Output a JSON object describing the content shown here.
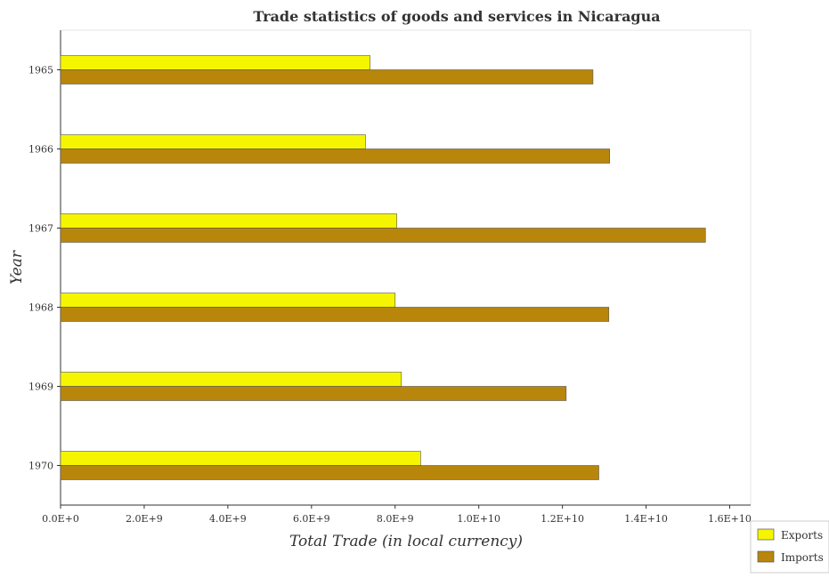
{
  "chart_data": {
    "type": "bar",
    "orientation": "horizontal",
    "title": "Trade statistics of goods and services in Nicaragua",
    "xlabel": "Total Trade (in local currency)",
    "ylabel": "Year",
    "categories": [
      "1965",
      "1966",
      "1967",
      "1968",
      "1969",
      "1970"
    ],
    "series": [
      {
        "name": "Exports",
        "color": "#f5f500",
        "values": [
          7400000000.0,
          7290000000.0,
          8040000000.0,
          8000000000.0,
          8150000000.0,
          8610000000.0
        ]
      },
      {
        "name": "Imports",
        "color": "#b8860b",
        "values": [
          12730000000.0,
          13130000000.0,
          15420000000.0,
          13110000000.0,
          12090000000.0,
          12870000000.0
        ]
      }
    ],
    "xlim": [
      0,
      16500000000
    ],
    "xticks": [
      "0.0E+0",
      "2.0E+9",
      "4.0E+9",
      "6.0E+9",
      "8.0E+9",
      "1.0E+10",
      "1.2E+10",
      "1.4E+10",
      "1.6E+10"
    ],
    "xtick_values": [
      0,
      2000000000,
      4000000000,
      6000000000,
      8000000000,
      10000000000,
      12000000000,
      14000000000,
      16000000000
    ],
    "grid": false,
    "legend_position": "bottom-right"
  }
}
